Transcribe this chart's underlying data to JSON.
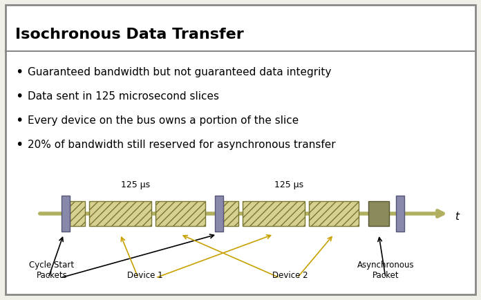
{
  "title": "Isochronous Data Transfer",
  "bullets": [
    "Guaranteed bandwidth but not guaranteed data integrity",
    "Data sent in 125 microsecond slices",
    "Every device on the bus owns a portion of the slice",
    "20% of bandwidth still reserved for asynchronous transfer"
  ],
  "bg_color": "#f0f0e8",
  "border_color": "#888888",
  "timeline_color": "#b0b060",
  "cycle_start_color": "#8888aa",
  "hatched_color": "#d8d090",
  "async_color": "#8a8a5a",
  "title_fontsize": 16,
  "bullet_fontsize": 11
}
